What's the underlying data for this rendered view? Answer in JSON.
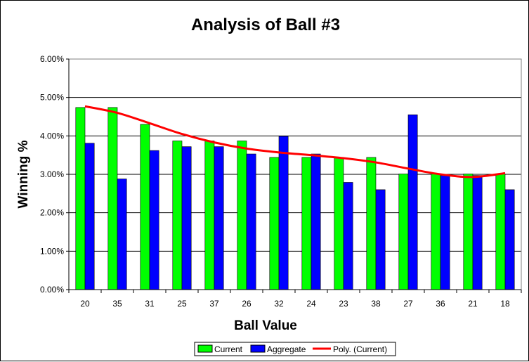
{
  "chart_data": {
    "type": "bar",
    "title": "Analysis of Ball #3",
    "xlabel": "Ball Value",
    "ylabel": "Winning %",
    "categories": [
      "20",
      "35",
      "31",
      "25",
      "37",
      "26",
      "32",
      "24",
      "23",
      "38",
      "27",
      "36",
      "21",
      "18"
    ],
    "series": [
      {
        "name": "Current",
        "color": "#00ff00",
        "values": [
          4.74,
          4.74,
          4.3,
          3.87,
          3.87,
          3.87,
          3.44,
          3.44,
          3.44,
          3.44,
          3.01,
          3.01,
          3.01,
          3.01
        ]
      },
      {
        "name": "Aggregate",
        "color": "#0000ff",
        "values": [
          3.81,
          2.88,
          3.62,
          3.72,
          3.72,
          3.53,
          3.99,
          3.53,
          2.79,
          2.6,
          4.55,
          2.97,
          2.97,
          2.6
        ]
      }
    ],
    "trendline": {
      "name": "Poly. (Current)",
      "color": "#ff0000",
      "values": [
        4.77,
        4.6,
        4.33,
        4.05,
        3.83,
        3.67,
        3.57,
        3.5,
        3.42,
        3.31,
        3.15,
        3.0,
        2.93,
        3.03
      ]
    },
    "yticks": [
      "0.00%",
      "1.00%",
      "2.00%",
      "3.00%",
      "4.00%",
      "5.00%",
      "6.00%"
    ],
    "ylim": [
      0,
      6
    ],
    "unit": "%",
    "grid": true,
    "legend_position": "bottom",
    "plot_background": "#ffffff"
  }
}
